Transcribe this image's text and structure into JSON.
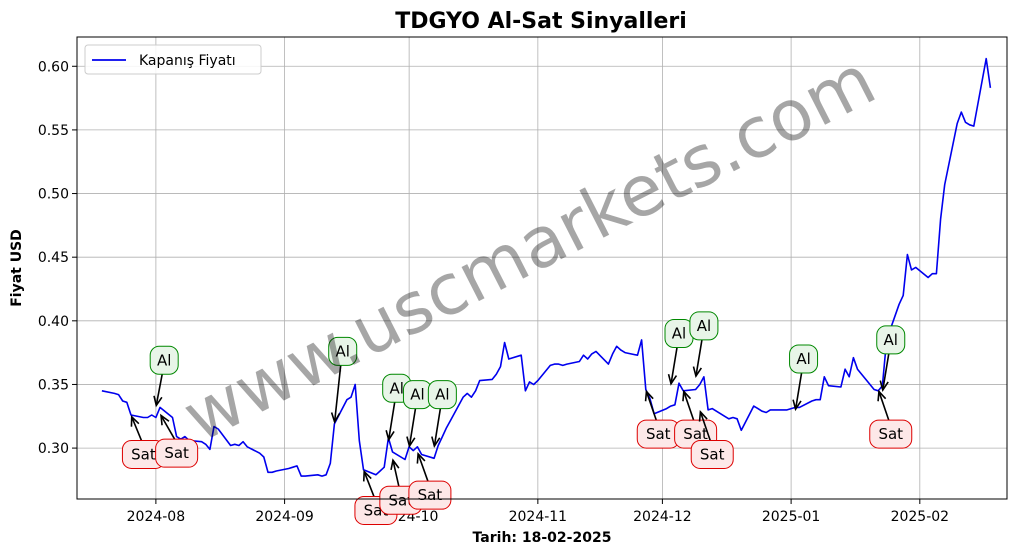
{
  "chart_data": {
    "type": "line",
    "title": "TDGYO Al-Sat Sinyalleri",
    "xlabel": "Tarih: 18-02-2025",
    "ylabel": "Fiyat USD",
    "ylim": [
      0.26,
      0.623
    ],
    "xlim": [
      "2024-07-13",
      "2025-02-22"
    ],
    "grid": true,
    "legend_position": "upper-left",
    "x_tick_labels": [
      "2024-08",
      "2024-09",
      "2024-10",
      "2024-11",
      "2024-12",
      "2025-01",
      "2025-02"
    ],
    "x_ticks": [
      "2024-08-01",
      "2024-09-01",
      "2024-10-01",
      "2024-11-01",
      "2024-12-01",
      "2025-01-01",
      "2025-02-01"
    ],
    "y_ticks": [
      0.3,
      0.35,
      0.4,
      0.45,
      0.5,
      0.55,
      0.6
    ],
    "y_tick_labels": [
      "0.30",
      "0.35",
      "0.40",
      "0.45",
      "0.50",
      "0.55",
      "0.60"
    ],
    "series": [
      {
        "name": "Kapanış Fiyatı",
        "color": "#0000ee",
        "points": [
          [
            "2024-07-19",
            0.345
          ],
          [
            "2024-07-22",
            0.343
          ],
          [
            "2024-07-23",
            0.342
          ],
          [
            "2024-07-24",
            0.337
          ],
          [
            "2024-07-25",
            0.336
          ],
          [
            "2024-07-26",
            0.326
          ],
          [
            "2024-07-29",
            0.324
          ],
          [
            "2024-07-30",
            0.324
          ],
          [
            "2024-07-31",
            0.326
          ],
          [
            "2024-08-01",
            0.324
          ],
          [
            "2024-08-02",
            0.332
          ],
          [
            "2024-08-05",
            0.324
          ],
          [
            "2024-08-06",
            0.309
          ],
          [
            "2024-08-07",
            0.307
          ],
          [
            "2024-08-08",
            0.309
          ],
          [
            "2024-08-09",
            0.306
          ],
          [
            "2024-08-12",
            0.305
          ],
          [
            "2024-08-13",
            0.303
          ],
          [
            "2024-08-14",
            0.299
          ],
          [
            "2024-08-15",
            0.317
          ],
          [
            "2024-08-16",
            0.315
          ],
          [
            "2024-08-19",
            0.302
          ],
          [
            "2024-08-20",
            0.303
          ],
          [
            "2024-08-21",
            0.302
          ],
          [
            "2024-08-22",
            0.305
          ],
          [
            "2024-08-23",
            0.301
          ],
          [
            "2024-08-26",
            0.296
          ],
          [
            "2024-08-27",
            0.293
          ],
          [
            "2024-08-28",
            0.281
          ],
          [
            "2024-08-29",
            0.281
          ],
          [
            "2024-08-30",
            0.282
          ],
          [
            "2024-09-02",
            0.284
          ],
          [
            "2024-09-03",
            0.285
          ],
          [
            "2024-09-04",
            0.286
          ],
          [
            "2024-09-05",
            0.278
          ],
          [
            "2024-09-06",
            0.278
          ],
          [
            "2024-09-09",
            0.279
          ],
          [
            "2024-09-10",
            0.278
          ],
          [
            "2024-09-11",
            0.279
          ],
          [
            "2024-09-12",
            0.288
          ],
          [
            "2024-09-13",
            0.319
          ],
          [
            "2024-09-16",
            0.338
          ],
          [
            "2024-09-17",
            0.34
          ],
          [
            "2024-09-18",
            0.35
          ],
          [
            "2024-09-19",
            0.306
          ],
          [
            "2024-09-20",
            0.283
          ],
          [
            "2024-09-23",
            0.279
          ],
          [
            "2024-09-24",
            0.282
          ],
          [
            "2024-09-25",
            0.285
          ],
          [
            "2024-09-26",
            0.308
          ],
          [
            "2024-09-27",
            0.297
          ],
          [
            "2024-09-30",
            0.291
          ],
          [
            "2024-10-01",
            0.301
          ],
          [
            "2024-10-02",
            0.298
          ],
          [
            "2024-10-03",
            0.301
          ],
          [
            "2024-10-04",
            0.295
          ],
          [
            "2024-10-07",
            0.292
          ],
          [
            "2024-10-08",
            0.302
          ],
          [
            "2024-10-09",
            0.309
          ],
          [
            "2024-10-10",
            0.316
          ],
          [
            "2024-10-11",
            0.322
          ],
          [
            "2024-10-14",
            0.34
          ],
          [
            "2024-10-15",
            0.343
          ],
          [
            "2024-10-16",
            0.34
          ],
          [
            "2024-10-17",
            0.345
          ],
          [
            "2024-10-18",
            0.353
          ],
          [
            "2024-10-21",
            0.354
          ],
          [
            "2024-10-22",
            0.358
          ],
          [
            "2024-10-23",
            0.364
          ],
          [
            "2024-10-24",
            0.383
          ],
          [
            "2024-10-25",
            0.37
          ],
          [
            "2024-10-28",
            0.373
          ],
          [
            "2024-10-29",
            0.345
          ],
          [
            "2024-10-30",
            0.352
          ],
          [
            "2024-10-31",
            0.35
          ],
          [
            "2024-11-01",
            0.353
          ],
          [
            "2024-11-04",
            0.365
          ],
          [
            "2024-11-05",
            0.366
          ],
          [
            "2024-11-06",
            0.366
          ],
          [
            "2024-11-07",
            0.365
          ],
          [
            "2024-11-08",
            0.366
          ],
          [
            "2024-11-11",
            0.368
          ],
          [
            "2024-11-12",
            0.373
          ],
          [
            "2024-11-13",
            0.37
          ],
          [
            "2024-11-14",
            0.374
          ],
          [
            "2024-11-15",
            0.376
          ],
          [
            "2024-11-18",
            0.366
          ],
          [
            "2024-11-19",
            0.374
          ],
          [
            "2024-11-20",
            0.38
          ],
          [
            "2024-11-21",
            0.377
          ],
          [
            "2024-11-22",
            0.375
          ],
          [
            "2024-11-25",
            0.373
          ],
          [
            "2024-11-26",
            0.385
          ],
          [
            "2024-11-27",
            0.346
          ],
          [
            "2024-11-28",
            0.339
          ],
          [
            "2024-11-29",
            0.327
          ],
          [
            "2024-12-02",
            0.331
          ],
          [
            "2024-12-03",
            0.333
          ],
          [
            "2024-12-04",
            0.334
          ],
          [
            "2024-12-05",
            0.351
          ],
          [
            "2024-12-06",
            0.345
          ],
          [
            "2024-12-09",
            0.346
          ],
          [
            "2024-12-10",
            0.35
          ],
          [
            "2024-12-11",
            0.356
          ],
          [
            "2024-12-12",
            0.33
          ],
          [
            "2024-12-13",
            0.331
          ],
          [
            "2024-12-16",
            0.325
          ],
          [
            "2024-12-17",
            0.323
          ],
          [
            "2024-12-18",
            0.324
          ],
          [
            "2024-12-19",
            0.323
          ],
          [
            "2024-12-20",
            0.314
          ],
          [
            "2024-12-23",
            0.333
          ],
          [
            "2024-12-24",
            0.331
          ],
          [
            "2024-12-25",
            0.329
          ],
          [
            "2024-12-26",
            0.328
          ],
          [
            "2024-12-27",
            0.33
          ],
          [
            "2024-12-30",
            0.33
          ],
          [
            "2024-12-31",
            0.33
          ],
          [
            "2025-01-02",
            0.332
          ],
          [
            "2025-01-03",
            0.332
          ],
          [
            "2025-01-06",
            0.337
          ],
          [
            "2025-01-07",
            0.338
          ],
          [
            "2025-01-08",
            0.338
          ],
          [
            "2025-01-09",
            0.356
          ],
          [
            "2025-01-10",
            0.349
          ],
          [
            "2025-01-13",
            0.348
          ],
          [
            "2025-01-14",
            0.362
          ],
          [
            "2025-01-15",
            0.356
          ],
          [
            "2025-01-16",
            0.371
          ],
          [
            "2025-01-17",
            0.362
          ],
          [
            "2025-01-20",
            0.35
          ],
          [
            "2025-01-21",
            0.346
          ],
          [
            "2025-01-22",
            0.345
          ],
          [
            "2025-01-23",
            0.349
          ],
          [
            "2025-01-24",
            0.385
          ],
          [
            "2025-01-27",
            0.413
          ],
          [
            "2025-01-28",
            0.42
          ],
          [
            "2025-01-29",
            0.452
          ],
          [
            "2025-01-30",
            0.44
          ],
          [
            "2025-01-31",
            0.442
          ],
          [
            "2025-02-03",
            0.434
          ],
          [
            "2025-02-04",
            0.437
          ],
          [
            "2025-02-05",
            0.437
          ],
          [
            "2025-02-06",
            0.48
          ],
          [
            "2025-02-07",
            0.507
          ],
          [
            "2025-02-10",
            0.555
          ],
          [
            "2025-02-11",
            0.564
          ],
          [
            "2025-02-12",
            0.556
          ],
          [
            "2025-02-13",
            0.554
          ],
          [
            "2025-02-14",
            0.553
          ],
          [
            "2025-02-17",
            0.606
          ],
          [
            "2025-02-18",
            0.583
          ]
        ]
      }
    ],
    "annotations": [
      {
        "label": "Sat",
        "date": "2024-07-26",
        "price": 0.326,
        "color": "#dd0000",
        "fill": "#fde8e8",
        "text_dx": 3,
        "text_dy": -0.031
      },
      {
        "label": "Al",
        "date": "2024-08-01",
        "price": 0.332,
        "color": "#008800",
        "fill": "#e8f5e8",
        "text_dx": 2,
        "text_dy": 0.037
      },
      {
        "label": "Sat",
        "date": "2024-08-02",
        "price": 0.327,
        "color": "#dd0000",
        "fill": "#fde8e8",
        "text_dx": 4,
        "text_dy": -0.031
      },
      {
        "label": "Al",
        "date": "2024-09-13",
        "price": 0.319,
        "color": "#008800",
        "fill": "#e8f5e8",
        "text_dx": 2,
        "text_dy": 0.057
      },
      {
        "label": "Sat",
        "date": "2024-09-20",
        "price": 0.283,
        "color": "#dd0000",
        "fill": "#fde8e8",
        "text_dx": 3,
        "text_dy": -0.032
      },
      {
        "label": "Al",
        "date": "2024-09-26",
        "price": 0.305,
        "color": "#008800",
        "fill": "#e8f5e8",
        "text_dx": 2,
        "text_dy": 0.042
      },
      {
        "label": "Sat",
        "date": "2024-09-27",
        "price": 0.292,
        "color": "#dd0000",
        "fill": "#fde8e8",
        "text_dx": 2,
        "text_dy": -0.033
      },
      {
        "label": "Al",
        "date": "2024-10-01",
        "price": 0.3,
        "color": "#008800",
        "fill": "#e8f5e8",
        "text_dx": 2,
        "text_dy": 0.042
      },
      {
        "label": "Sat",
        "date": "2024-10-03",
        "price": 0.297,
        "color": "#dd0000",
        "fill": "#fde8e8",
        "text_dx": 3,
        "text_dy": -0.034
      },
      {
        "label": "Al",
        "date": "2024-10-07",
        "price": 0.3,
        "color": "#008800",
        "fill": "#e8f5e8",
        "text_dx": 2,
        "text_dy": 0.042
      },
      {
        "label": "Sat",
        "date": "2024-11-27",
        "price": 0.346,
        "color": "#dd0000",
        "fill": "#fde8e8",
        "text_dx": 3,
        "text_dy": -0.035
      },
      {
        "label": "Al",
        "date": "2024-12-03",
        "price": 0.349,
        "color": "#008800",
        "fill": "#e8f5e8",
        "text_dx": 2,
        "text_dy": 0.041
      },
      {
        "label": "Sat",
        "date": "2024-12-06",
        "price": 0.346,
        "color": "#dd0000",
        "fill": "#fde8e8",
        "text_dx": 3,
        "text_dy": -0.035
      },
      {
        "label": "Al",
        "date": "2024-12-09",
        "price": 0.355,
        "color": "#008800",
        "fill": "#e8f5e8",
        "text_dx": 2,
        "text_dy": 0.041
      },
      {
        "label": "Sat",
        "date": "2024-12-10",
        "price": 0.33,
        "color": "#dd0000",
        "fill": "#fde8e8",
        "text_dx": 3,
        "text_dy": -0.035
      },
      {
        "label": "Al",
        "date": "2025-01-02",
        "price": 0.329,
        "color": "#008800",
        "fill": "#e8f5e8",
        "text_dx": 2,
        "text_dy": 0.041
      },
      {
        "label": "Sat",
        "date": "2025-01-22",
        "price": 0.346,
        "color": "#dd0000",
        "fill": "#fde8e8",
        "text_dx": 3,
        "text_dy": -0.035
      },
      {
        "label": "Al",
        "date": "2025-01-23",
        "price": 0.344,
        "color": "#008800",
        "fill": "#e8f5e8",
        "text_dx": 2,
        "text_dy": 0.041
      }
    ],
    "watermark": "www.uscmarkets.com"
  }
}
